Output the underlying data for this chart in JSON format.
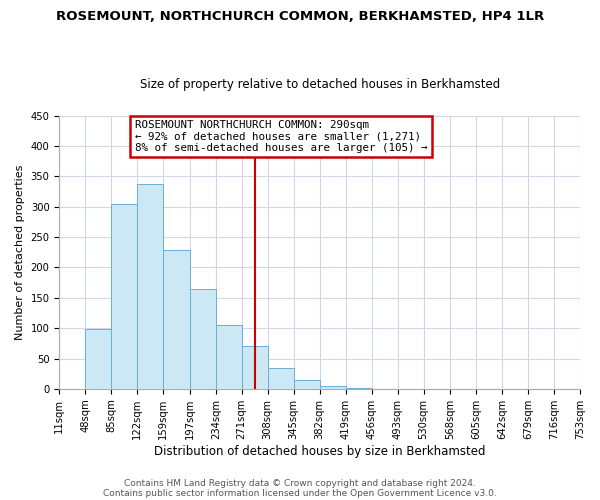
{
  "title": "ROSEMOUNT, NORTHCHURCH COMMON, BERKHAMSTED, HP4 1LR",
  "subtitle": "Size of property relative to detached houses in Berkhamsted",
  "xlabel": "Distribution of detached houses by size in Berkhamsted",
  "ylabel": "Number of detached properties",
  "bar_edges": [
    11,
    48,
    85,
    122,
    159,
    197,
    234,
    271,
    308,
    345,
    382,
    419,
    456,
    493,
    530,
    568,
    605,
    642,
    679,
    716,
    753
  ],
  "bar_heights": [
    0,
    99,
    305,
    338,
    228,
    165,
    106,
    70,
    34,
    14,
    5,
    2,
    0,
    0,
    0,
    0,
    0,
    0,
    0,
    0
  ],
  "tick_labels": [
    "11sqm",
    "48sqm",
    "85sqm",
    "122sqm",
    "159sqm",
    "197sqm",
    "234sqm",
    "271sqm",
    "308sqm",
    "345sqm",
    "382sqm",
    "419sqm",
    "456sqm",
    "493sqm",
    "530sqm",
    "568sqm",
    "605sqm",
    "642sqm",
    "679sqm",
    "716sqm",
    "753sqm"
  ],
  "bar_color": "#cde8f5",
  "bar_edgecolor": "#6aaed6",
  "vline_x": 290,
  "vline_color": "#cc0000",
  "ylim": [
    0,
    450
  ],
  "yticks": [
    0,
    50,
    100,
    150,
    200,
    250,
    300,
    350,
    400,
    450
  ],
  "annotation_title": "ROSEMOUNT NORTHCHURCH COMMON: 290sqm",
  "annotation_line1": "← 92% of detached houses are smaller (1,271)",
  "annotation_line2": "8% of semi-detached houses are larger (105) →",
  "footnote1": "Contains HM Land Registry data © Crown copyright and database right 2024.",
  "footnote2": "Contains public sector information licensed under the Open Government Licence v3.0.",
  "bg_color": "#ffffff",
  "grid_color": "#d0d8e8",
  "title_fontsize": 9.5,
  "subtitle_fontsize": 8.5,
  "ylabel_fontsize": 8,
  "xlabel_fontsize": 8.5,
  "tick_fontsize": 7.2,
  "footnote_fontsize": 6.5
}
